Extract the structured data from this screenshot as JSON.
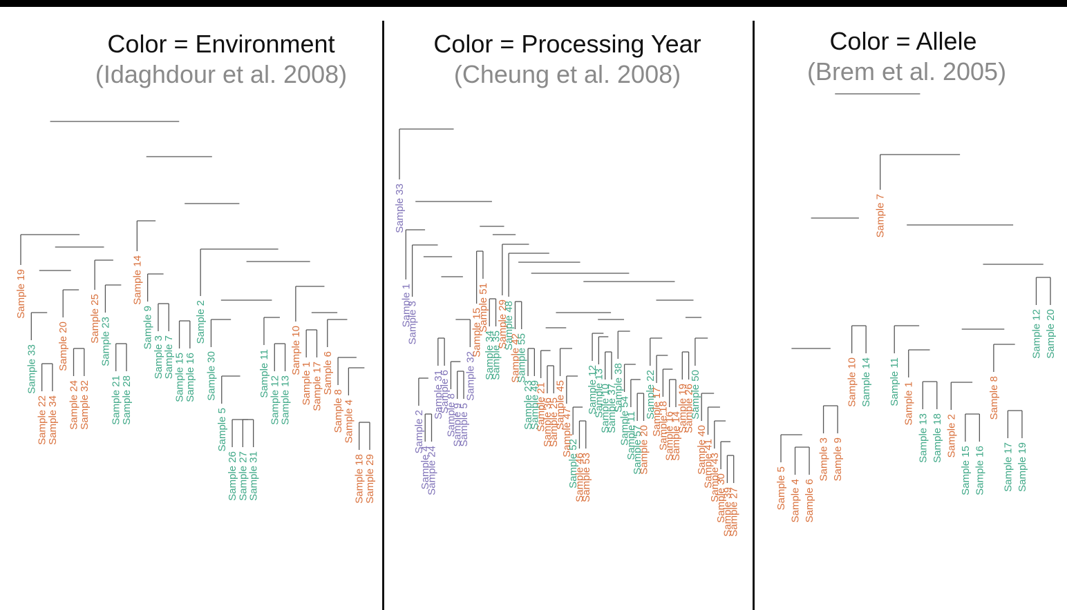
{
  "colors": {
    "orange": "#d9713d",
    "green": "#3fa887",
    "purple": "#8073b8",
    "branch": "#555555"
  },
  "panels": [
    {
      "id": "environment",
      "title": "Color = Environment",
      "citation": "(Idaghdour et al. 2008)",
      "leaves": [
        {
          "label": "Sample 19",
          "color": "orange"
        },
        {
          "label": "Sample 33",
          "color": "green"
        },
        {
          "label": "Sample 22",
          "color": "orange"
        },
        {
          "label": "Sample 34",
          "color": "orange"
        },
        {
          "label": "Sample 20",
          "color": "orange"
        },
        {
          "label": "Sample 24",
          "color": "orange"
        },
        {
          "label": "Sample 32",
          "color": "orange"
        },
        {
          "label": "Sample 25",
          "color": "orange"
        },
        {
          "label": "Sample 23",
          "color": "green"
        },
        {
          "label": "Sample 21",
          "color": "green"
        },
        {
          "label": "Sample 28",
          "color": "green"
        },
        {
          "label": "Sample 14",
          "color": "orange"
        },
        {
          "label": "Sample 9",
          "color": "green"
        },
        {
          "label": "Sample 3",
          "color": "green"
        },
        {
          "label": "Sample 7",
          "color": "green"
        },
        {
          "label": "Sample 15",
          "color": "green"
        },
        {
          "label": "Sample 16",
          "color": "green"
        },
        {
          "label": "Sample 2",
          "color": "green"
        },
        {
          "label": "Sample 30",
          "color": "green"
        },
        {
          "label": "Sample 5",
          "color": "green"
        },
        {
          "label": "Sample 26",
          "color": "green"
        },
        {
          "label": "Sample 27",
          "color": "green"
        },
        {
          "label": "Sample 31",
          "color": "green"
        },
        {
          "label": "Sample 11",
          "color": "green"
        },
        {
          "label": "Sample 12",
          "color": "green"
        },
        {
          "label": "Sample 13",
          "color": "green"
        },
        {
          "label": "Sample 10",
          "color": "orange"
        },
        {
          "label": "Sample 1",
          "color": "orange"
        },
        {
          "label": "Sample 17",
          "color": "orange"
        },
        {
          "label": "Sample 6",
          "color": "orange"
        },
        {
          "label": "Sample 8",
          "color": "orange"
        },
        {
          "label": "Sample 4",
          "color": "orange"
        },
        {
          "label": "Sample 18",
          "color": "orange"
        },
        {
          "label": "Sample 29",
          "color": "orange"
        }
      ]
    },
    {
      "id": "processing-year",
      "title": "Color = Processing Year",
      "citation": "(Cheung et al. 2008)",
      "leaves": [
        {
          "label": "Sample 33",
          "color": "purple"
        },
        {
          "label": "Sample 1",
          "color": "purple"
        },
        {
          "label": "Sample 3",
          "color": "purple"
        },
        {
          "label": "Sample 2",
          "color": "purple"
        },
        {
          "label": "Sample 4",
          "color": "purple"
        },
        {
          "label": "Sample 24",
          "color": "purple"
        },
        {
          "label": "Sample 31",
          "color": "purple"
        },
        {
          "label": "Sample 6",
          "color": "purple"
        },
        {
          "label": "Sample 8",
          "color": "purple"
        },
        {
          "label": "Sample 9",
          "color": "purple"
        },
        {
          "label": "Sample 5",
          "color": "purple"
        },
        {
          "label": "Sample 32",
          "color": "purple"
        },
        {
          "label": "Sample 15",
          "color": "orange"
        },
        {
          "label": "Sample 51",
          "color": "orange"
        },
        {
          "label": "Sample 34",
          "color": "green"
        },
        {
          "label": "Sample 35",
          "color": "green"
        },
        {
          "label": "Sample 29",
          "color": "orange"
        },
        {
          "label": "Sample 48",
          "color": "green"
        },
        {
          "label": "Sample 42",
          "color": "orange"
        },
        {
          "label": "Sample 55",
          "color": "green"
        },
        {
          "label": "Sample 23",
          "color": "green"
        },
        {
          "label": "Sample 49",
          "color": "green"
        },
        {
          "label": "Sample 21",
          "color": "orange"
        },
        {
          "label": "Sample 36",
          "color": "orange"
        },
        {
          "label": "Sample 25",
          "color": "orange"
        },
        {
          "label": "Sample 45",
          "color": "orange"
        },
        {
          "label": "Sample 47",
          "color": "orange"
        },
        {
          "label": "Sample 52",
          "color": "green"
        },
        {
          "label": "Sample 46",
          "color": "orange"
        },
        {
          "label": "Sample 53",
          "color": "orange"
        },
        {
          "label": "Sample 12",
          "color": "green"
        },
        {
          "label": "Sample 13",
          "color": "green"
        },
        {
          "label": "Sample 10",
          "color": "green"
        },
        {
          "label": "Sample 37",
          "color": "green"
        },
        {
          "label": "Sample 38",
          "color": "green"
        },
        {
          "label": "Sample 54",
          "color": "green"
        },
        {
          "label": "Sample 11",
          "color": "green"
        },
        {
          "label": "Sample 57",
          "color": "green"
        },
        {
          "label": "Sample 20",
          "color": "orange"
        },
        {
          "label": "Sample 22",
          "color": "green"
        },
        {
          "label": "Sample 17",
          "color": "orange"
        },
        {
          "label": "Sample 18",
          "color": "orange"
        },
        {
          "label": "Sample 16",
          "color": "orange"
        },
        {
          "label": "Sample 14",
          "color": "orange"
        },
        {
          "label": "Sample 19",
          "color": "orange"
        },
        {
          "label": "Sample 26",
          "color": "orange"
        },
        {
          "label": "Sample 50",
          "color": "green"
        },
        {
          "label": "Sample 40",
          "color": "orange"
        },
        {
          "label": "Sample 41",
          "color": "orange"
        },
        {
          "label": "Sample 43",
          "color": "orange"
        },
        {
          "label": "Sample 30",
          "color": "orange"
        },
        {
          "label": "Sample 39",
          "color": "orange"
        },
        {
          "label": "Sample 27",
          "color": "orange"
        },
        {
          "label": "Sample 28",
          "color": "orange"
        }
      ]
    },
    {
      "id": "allele",
      "title": "Color = Allele",
      "citation": "(Brem et al. 2005)",
      "leaves": [
        {
          "label": "Sample 5",
          "color": "orange"
        },
        {
          "label": "Sample 4",
          "color": "orange"
        },
        {
          "label": "Sample 6",
          "color": "orange"
        },
        {
          "label": "Sample 3",
          "color": "orange"
        },
        {
          "label": "Sample 9",
          "color": "orange"
        },
        {
          "label": "Sample 10",
          "color": "orange"
        },
        {
          "label": "Sample 14",
          "color": "green"
        },
        {
          "label": "Sample 7",
          "color": "orange"
        },
        {
          "label": "Sample 11",
          "color": "green"
        },
        {
          "label": "Sample 1",
          "color": "orange"
        },
        {
          "label": "Sample 13",
          "color": "green"
        },
        {
          "label": "Sample 18",
          "color": "green"
        },
        {
          "label": "Sample 2",
          "color": "orange"
        },
        {
          "label": "Sample 15",
          "color": "green"
        },
        {
          "label": "Sample 16",
          "color": "green"
        },
        {
          "label": "Sample 8",
          "color": "orange"
        },
        {
          "label": "Sample 17",
          "color": "green"
        },
        {
          "label": "Sample 19",
          "color": "green"
        },
        {
          "label": "Sample 12",
          "color": "green"
        },
        {
          "label": "Sample 20",
          "color": "green"
        }
      ]
    }
  ]
}
